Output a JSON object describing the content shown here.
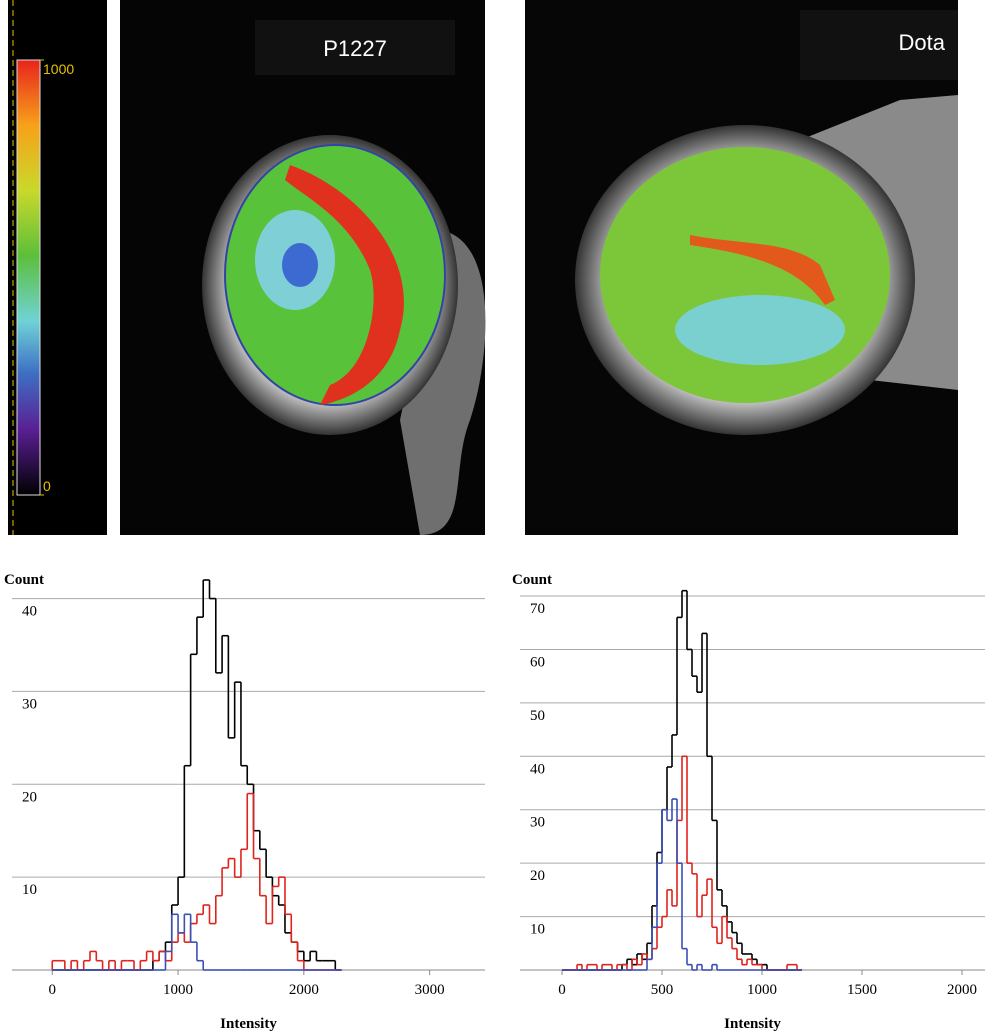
{
  "panels": [
    {
      "label": "P1227"
    },
    {
      "label": "Dota"
    }
  ],
  "colorbar": {
    "ticks": [
      0,
      1000
    ]
  },
  "chart_data": [
    {
      "type": "histogram",
      "ylabel": "Count",
      "xlabel": "Intensity",
      "bins": [
        0,
        50,
        100,
        150,
        200,
        250,
        300,
        350,
        400,
        450,
        500,
        550,
        600,
        650,
        700,
        750,
        800,
        850,
        900,
        950,
        1000,
        1050,
        1100,
        1150,
        1200,
        1250,
        1300,
        1350,
        1400,
        1450,
        1500,
        1550,
        1600,
        1650,
        1700,
        1750,
        1800,
        1850,
        1900,
        1950,
        2000,
        2050,
        2100,
        2150,
        2200,
        2250,
        2300
      ],
      "series": [
        {
          "color": "#000000",
          "values": [
            0,
            0,
            0,
            0,
            0,
            0,
            0,
            0,
            0,
            0,
            0,
            0,
            0,
            0,
            0,
            0,
            1,
            2,
            3,
            7,
            10,
            22,
            34,
            38,
            42,
            40,
            32,
            36,
            25,
            31,
            22,
            20,
            15,
            13,
            10,
            8,
            7,
            4,
            3,
            2,
            1,
            2,
            1,
            1,
            1,
            0
          ]
        },
        {
          "color": "#e0231c",
          "values": [
            1,
            1,
            0,
            1,
            0,
            1,
            2,
            1,
            0,
            1,
            0,
            1,
            1,
            0,
            1,
            2,
            1,
            2,
            1,
            3,
            4,
            3,
            5,
            6,
            7,
            5,
            8,
            11,
            12,
            10,
            13,
            19,
            12,
            8,
            5,
            9,
            10,
            6,
            3,
            1,
            0,
            0,
            0,
            0,
            0,
            0
          ]
        },
        {
          "color": "#3b4fb5",
          "values": [
            0,
            0,
            0,
            0,
            0,
            0,
            0,
            0,
            0,
            0,
            0,
            0,
            0,
            0,
            0,
            0,
            0,
            0,
            2,
            6,
            4,
            6,
            3,
            1,
            0,
            0,
            0,
            0,
            0,
            0,
            0,
            0,
            0,
            0,
            0,
            0,
            0,
            0,
            0,
            0,
            0,
            0,
            0,
            0,
            0,
            0
          ]
        }
      ],
      "xlim": [
        -320,
        3440
      ],
      "xticks": [
        0,
        1000,
        2000,
        3000
      ],
      "ylim": [
        0,
        42
      ],
      "yticks": [
        10,
        20,
        30,
        40
      ],
      "grid": true
    },
    {
      "type": "histogram",
      "ylabel": "Count",
      "xlabel": "Intensity",
      "bins": [
        0,
        25,
        50,
        75,
        100,
        125,
        150,
        175,
        200,
        225,
        250,
        275,
        300,
        325,
        350,
        375,
        400,
        425,
        450,
        475,
        500,
        525,
        550,
        575,
        600,
        625,
        650,
        675,
        700,
        725,
        750,
        775,
        800,
        825,
        850,
        875,
        900,
        925,
        950,
        975,
        1000,
        1025,
        1050,
        1075,
        1100,
        1125,
        1150,
        1175,
        1200
      ],
      "series": [
        {
          "color": "#000000",
          "values": [
            0,
            0,
            0,
            0,
            0,
            0,
            0,
            0,
            0,
            0,
            0,
            0,
            1,
            2,
            1,
            3,
            2,
            5,
            12,
            22,
            30,
            38,
            44,
            66,
            71,
            60,
            55,
            52,
            63,
            40,
            28,
            15,
            12,
            9,
            7,
            5,
            3,
            3,
            2,
            1,
            1,
            0,
            0,
            0,
            0,
            0,
            0,
            0
          ]
        },
        {
          "color": "#e0231c",
          "values": [
            0,
            0,
            0,
            1,
            0,
            1,
            1,
            0,
            1,
            1,
            0,
            1,
            1,
            0,
            2,
            1,
            3,
            2,
            4,
            8,
            10,
            15,
            12,
            28,
            40,
            20,
            18,
            10,
            14,
            17,
            8,
            5,
            10,
            6,
            4,
            2,
            1,
            2,
            1,
            1,
            0,
            0,
            0,
            0,
            0,
            1,
            1,
            0
          ]
        },
        {
          "color": "#3b4fb5",
          "values": [
            0,
            0,
            0,
            0,
            0,
            0,
            0,
            0,
            0,
            0,
            0,
            0,
            0,
            0,
            0,
            0,
            0,
            2,
            8,
            20,
            30,
            28,
            32,
            20,
            4,
            1,
            0,
            1,
            0,
            0,
            1,
            0,
            0,
            0,
            0,
            0,
            0,
            0,
            0,
            0,
            0,
            0,
            0,
            0,
            0,
            0,
            0,
            0
          ]
        }
      ],
      "xlim": [
        -210,
        2115
      ],
      "xticks": [
        0,
        500,
        1000,
        1500,
        2000
      ],
      "ylim": [
        0,
        73
      ],
      "yticks": [
        10,
        20,
        30,
        40,
        50,
        60,
        70
      ],
      "grid": true
    }
  ]
}
